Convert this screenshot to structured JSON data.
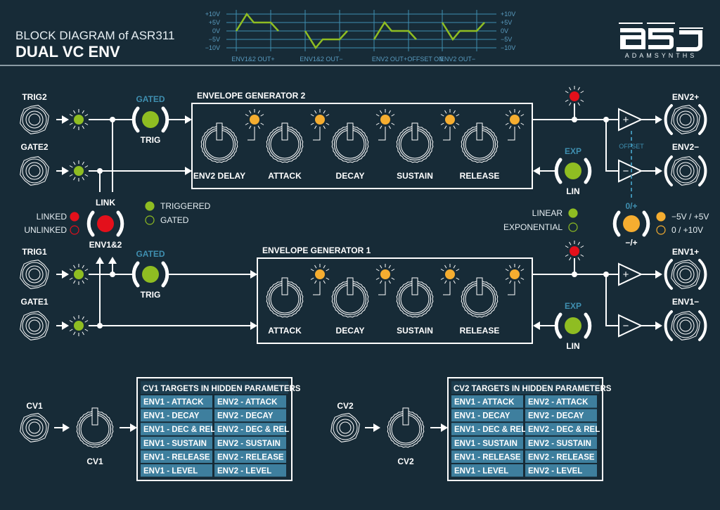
{
  "header": {
    "subtitle": "BLOCK DIAGRAM of ASR311",
    "title": "DUAL VC ENV"
  },
  "logo": {
    "text": "ADAMSYNTHS"
  },
  "colors": {
    "background": "#172b37",
    "green": "#8fbd22",
    "orange": "#f5ad30",
    "red": "#e3101b",
    "accent_blue": "#3f8fb0",
    "cell": "#3e7f9e"
  },
  "scope": {
    "y_ticks": [
      "+10V",
      "+5V",
      "0V",
      "−5V",
      "−10V"
    ],
    "y_range": [
      -10,
      10
    ],
    "labels": [
      "ENV1&2 OUT+",
      "ENV1&2 OUT−",
      "ENV2 OUT+",
      "OFFSET ON",
      "ENV2 OUT−"
    ],
    "waveforms_volts": [
      [
        0,
        10,
        5,
        5,
        0
      ],
      [
        0,
        -10,
        -5,
        -5,
        0
      ],
      [
        -5,
        5,
        0,
        0,
        -5
      ],
      [
        5,
        -5,
        0,
        0,
        5
      ]
    ]
  },
  "inputs": {
    "trig2": "TRIG2",
    "gate2": "GATE2",
    "trig1": "TRIG1",
    "gate1": "GATE1"
  },
  "mode_switch": {
    "top": "GATED",
    "bottom": "TRIG"
  },
  "legend_mode": {
    "triggered": "TRIGGERED",
    "gated": "GATED"
  },
  "link": {
    "top": "LINK",
    "bottom": "ENV1&2",
    "linked": "LINKED",
    "unlinked": "UNLINKED"
  },
  "eg2": {
    "title": "ENVELOPE GENERATOR 2",
    "knobs": [
      "ENV2 DELAY",
      "ATTACK",
      "DECAY",
      "SUSTAIN",
      "RELEASE"
    ]
  },
  "eg1": {
    "title": "ENVELOPE GENERATOR 1",
    "knobs": [
      "ATTACK",
      "DECAY",
      "SUSTAIN",
      "RELEASE"
    ]
  },
  "curve_switch": {
    "top": "EXP",
    "bottom": "LIN"
  },
  "legend_curve": {
    "linear": "LINEAR",
    "exponential": "EXPONENTIAL"
  },
  "offset": {
    "label": "OFFSET",
    "top": "0/+",
    "bottom": "−/+",
    "opt1": "−5V / +5V",
    "opt2": "0 / +10V"
  },
  "outputs": {
    "env2p": "ENV2+",
    "env2m": "ENV2−",
    "env1p": "ENV1+",
    "env1m": "ENV1−"
  },
  "amp_signs": {
    "plus": "+",
    "minus": "−"
  },
  "cv1": {
    "jack": "CV1",
    "knob": "CV1",
    "table_title": "CV1 TARGETS IN HIDDEN PARAMETERS",
    "rows": [
      [
        "ENV1 - ATTACK",
        "ENV2 - ATTACK"
      ],
      [
        "ENV1 - DECAY",
        "ENV2 - DECAY"
      ],
      [
        "ENV1 - DEC & REL",
        "ENV2 - DEC & REL"
      ],
      [
        "ENV1 - SUSTAIN",
        "ENV2 - SUSTAIN"
      ],
      [
        "ENV1 - RELEASE",
        "ENV2 - RELEASE"
      ],
      [
        "ENV1 - LEVEL",
        "ENV2 - LEVEL"
      ]
    ]
  },
  "cv2": {
    "jack": "CV2",
    "knob": "CV2",
    "table_title": "CV2 TARGETS IN HIDDEN PARAMETERS",
    "rows": [
      [
        "ENV1 - ATTACK",
        "ENV2 - ATTACK"
      ],
      [
        "ENV1 - DECAY",
        "ENV2 - DECAY"
      ],
      [
        "ENV1 - DEC & REL",
        "ENV2 - DEC & REL"
      ],
      [
        "ENV1 - SUSTAIN",
        "ENV2 - SUSTAIN"
      ],
      [
        "ENV1 - RELEASE",
        "ENV2 - RELEASE"
      ],
      [
        "ENV1 - LEVEL",
        "ENV2 - LEVEL"
      ]
    ]
  }
}
